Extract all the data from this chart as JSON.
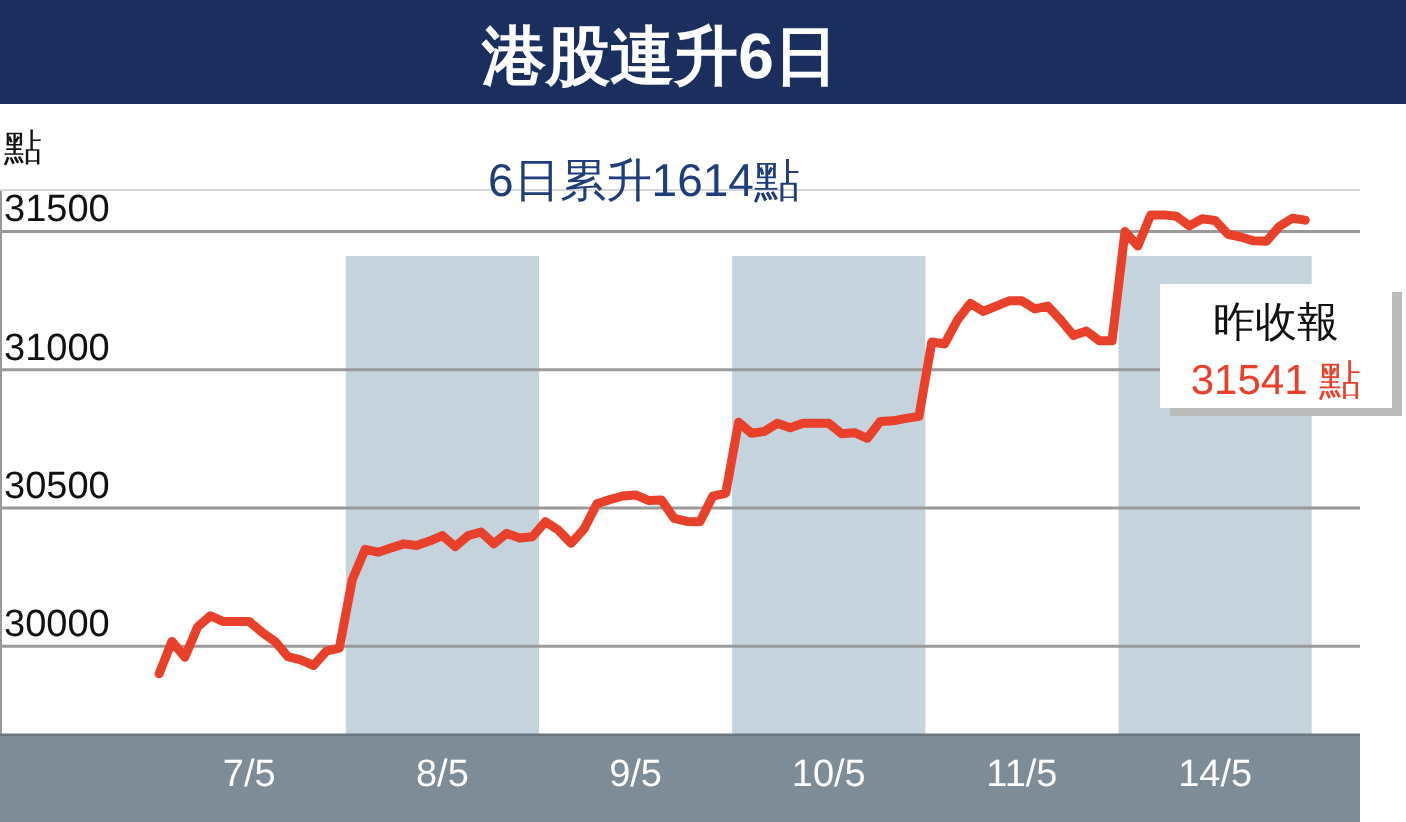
{
  "chart_data": {
    "type": "line",
    "title": "港股連升6日",
    "subtitle": "6日累升1614點",
    "ylabel": "點",
    "categories": [
      null,
      null,
      null,
      null,
      null,
      null,
      null,
      "7/5",
      null,
      null,
      null,
      null,
      null,
      null,
      null,
      null,
      null,
      null,
      null,
      null,
      null,
      null,
      "8/5",
      null,
      null,
      null,
      null,
      null,
      null,
      null,
      null,
      null,
      null,
      null,
      null,
      null,
      null,
      "9/5",
      null,
      null,
      null,
      null,
      null,
      null,
      null,
      null,
      null,
      null,
      null,
      null,
      null,
      null,
      "10/5",
      null,
      null,
      null,
      null,
      null,
      null,
      null,
      null,
      null,
      null,
      null,
      null,
      null,
      null,
      "11/5",
      null,
      null,
      null,
      null,
      null,
      null,
      null,
      null,
      null,
      null,
      null,
      null,
      null,
      null,
      "14/5",
      null,
      null,
      null,
      null,
      null,
      null,
      null
    ],
    "ylim": [
      29675,
      31650
    ],
    "yticks": [
      30000,
      30500,
      31000,
      31500
    ],
    "grid": "y",
    "annotations": [
      "昨收報",
      "31541 點"
    ],
    "series": [
      {
        "color": "#e8402a",
        "values": [
          29900,
          30017,
          29960,
          30070,
          30110,
          30089,
          30089,
          30089,
          30050,
          30017,
          29962,
          29950,
          29930,
          29982,
          29993,
          30240,
          30350,
          30340,
          30355,
          30370,
          30364,
          30380,
          30400,
          30360,
          30400,
          30413,
          30370,
          30408,
          30391,
          30396,
          30450,
          30420,
          30372,
          30424,
          30515,
          30530,
          30543,
          30547,
          30527,
          30529,
          30462,
          30451,
          30450,
          30543,
          30553,
          30810,
          30770,
          30777,
          30806,
          30790,
          30806,
          30806,
          30806,
          30768,
          30772,
          30752,
          30813,
          30815,
          30824,
          30831,
          31100,
          31093,
          31180,
          31240,
          31211,
          31230,
          31249,
          31249,
          31220,
          31230,
          31180,
          31124,
          31140,
          31105,
          31105,
          31500,
          31447,
          31560,
          31560,
          31555,
          31520,
          31546,
          31540,
          31490,
          31480,
          31466,
          31465,
          31519,
          31548,
          31541
        ]
      }
    ]
  }
}
